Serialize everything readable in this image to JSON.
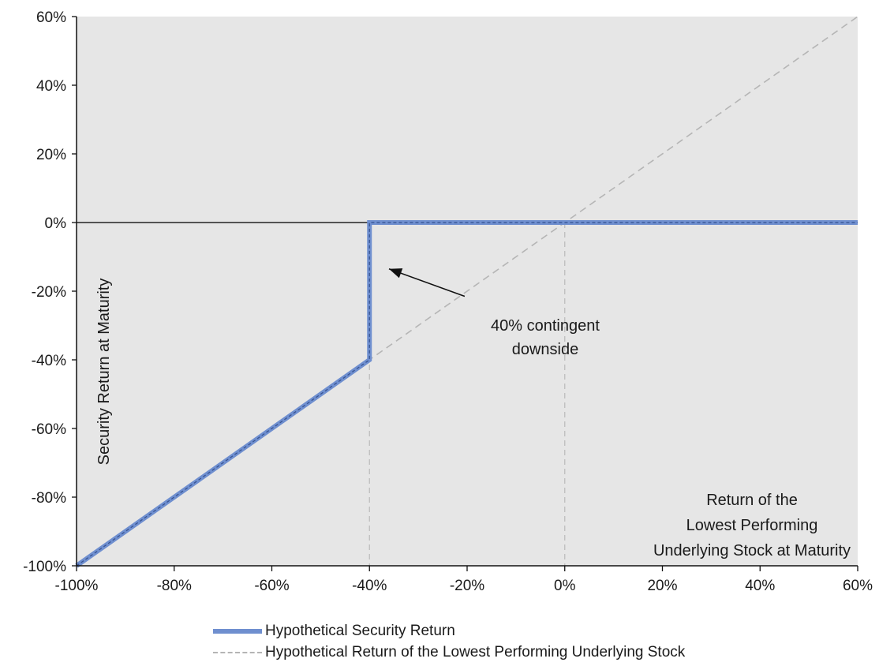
{
  "chart_data": {
    "type": "line",
    "ylabel": "Security Return at Maturity",
    "xlabel": "Return of the Lowest Performing Underlying Stock at Maturity",
    "xlabel_lines": [
      "Return of the",
      "Lowest Performing",
      "Underlying Stock at Maturity"
    ],
    "xlim": [
      -100,
      60
    ],
    "ylim": [
      -100,
      60
    ],
    "x_ticks": [
      "-100%",
      "-80%",
      "-60%",
      "-40%",
      "-20%",
      "0%",
      "20%",
      "40%",
      "60%"
    ],
    "y_ticks": [
      "60%",
      "40%",
      "20%",
      "0%",
      "-20%",
      "-40%",
      "-60%",
      "-80%",
      "-100%"
    ],
    "grid": false,
    "background": "#e6e6e6",
    "annotation": {
      "lines": [
        "40% contingent",
        "downside"
      ],
      "arrow_from": [
        -20.5,
        -21.5
      ],
      "arrow_to": [
        -36,
        -13.5
      ]
    },
    "reference_lines": [
      {
        "axis": "x",
        "value": -40
      },
      {
        "axis": "x",
        "value": 0
      },
      {
        "axis": "y",
        "value": 0
      }
    ],
    "series": [
      {
        "name": "Hypothetical Security Return",
        "style": "solid",
        "color": "#6f8fcf",
        "points": [
          [
            -100,
            -100
          ],
          [
            -40,
            -40
          ],
          [
            -40,
            0
          ],
          [
            60,
            0
          ]
        ]
      },
      {
        "name": "Hypothetical Return of the Lowest Performing Underlying Stock",
        "style": "dashed",
        "color": "#b5b5b5",
        "points": [
          [
            -100,
            -100
          ],
          [
            60,
            60
          ]
        ]
      }
    ]
  },
  "legend": {
    "items": [
      {
        "label": "Hypothetical Security Return"
      },
      {
        "label": "Hypothetical Return of the Lowest Performing Underlying Stock"
      }
    ]
  }
}
